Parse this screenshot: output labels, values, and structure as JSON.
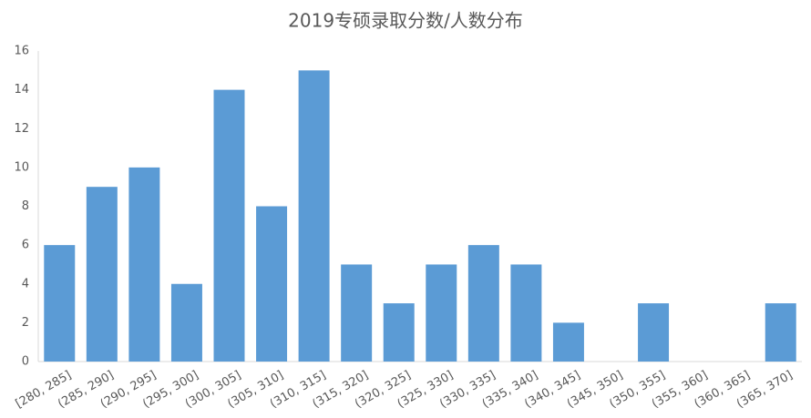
{
  "chart_data": {
    "type": "bar",
    "title": "2019专硕录取分数/人数分布",
    "categories": [
      "[280, 285]",
      "(285, 290]",
      "(290, 295]",
      "(295, 300]",
      "(300, 305]",
      "(305, 310]",
      "(310, 315]",
      "(315, 320]",
      "(320, 325]",
      "(325, 330]",
      "(330, 335]",
      "(335, 340]",
      "(340, 345]",
      "(345, 350]",
      "(350, 355]",
      "(355, 360]",
      "(360, 365]",
      "(365, 370]"
    ],
    "values": [
      6,
      9,
      10,
      4,
      14,
      8,
      15,
      5,
      3,
      5,
      6,
      5,
      2,
      0,
      3,
      0,
      0,
      3
    ],
    "color": "#5b9bd5",
    "ylim": [
      0,
      16
    ],
    "yticks": [
      0,
      2,
      4,
      6,
      8,
      10,
      12,
      14,
      16
    ],
    "grid": false
  }
}
